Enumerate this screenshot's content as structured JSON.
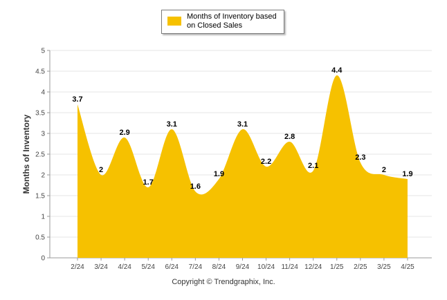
{
  "chart_data": {
    "type": "area",
    "categories": [
      "2/24",
      "3/24",
      "4/24",
      "5/24",
      "6/24",
      "7/24",
      "8/24",
      "9/24",
      "10/24",
      "11/24",
      "12/24",
      "1/25",
      "2/25",
      "3/25",
      "4/25"
    ],
    "series": [
      {
        "name": "Months of Inventory based on Closed Sales",
        "values": [
          3.7,
          2,
          2.9,
          1.7,
          3.1,
          1.6,
          1.9,
          3.1,
          2.2,
          2.8,
          2.1,
          4.4,
          2.3,
          2,
          1.9
        ],
        "color": "#f6c100"
      }
    ],
    "data_labels": [
      "3.7",
      "2",
      "2.9",
      "1.7",
      "3.1",
      "1.6",
      "1.9",
      "3.1",
      "2.2",
      "2.8",
      "2.1",
      "4.4",
      "2.3",
      "2",
      "1.9"
    ],
    "ylabel": "Months of Inventory",
    "ylim": [
      0,
      5
    ],
    "yticks": [
      "0",
      "0.5",
      "1",
      "1.5",
      "2",
      "2.5",
      "3",
      "3.5",
      "4",
      "4.5",
      "5"
    ],
    "grid": true,
    "legend_position": "top-center"
  },
  "footer": {
    "copyright": "Copyright © Trendgraphix, Inc."
  }
}
